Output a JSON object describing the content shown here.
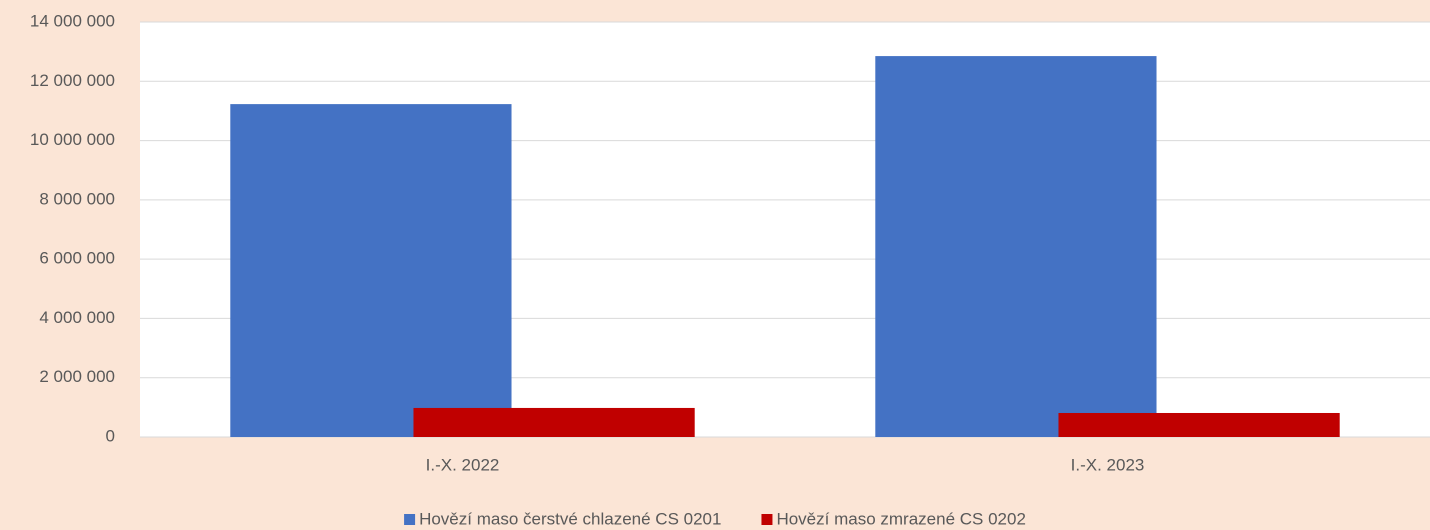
{
  "chart_data": {
    "type": "bar",
    "categories": [
      "I.-X. 2022",
      "I.-X. 2023"
    ],
    "series": [
      {
        "name": "Hovězí maso čerstvé chlazené CS 0201",
        "color": "#4472c4",
        "values": [
          11230000,
          12850000
        ]
      },
      {
        "name": "Hovězí maso zmrazené CS 0202",
        "color": "#c00000",
        "values": [
          980000,
          810000
        ]
      }
    ],
    "ylim": [
      0,
      14000000
    ],
    "yticks": [
      0,
      {
        "value": 2000000,
        "label": "2 000 000"
      },
      {
        "value": 4000000,
        "label": "4 000 000"
      },
      {
        "value": 6000000,
        "label": "6 000 000"
      },
      {
        "value": 8000000,
        "label": "8 000 000"
      },
      {
        "value": 10000000,
        "label": "10 000 000"
      },
      {
        "value": 12000000,
        "label": "12 000 000"
      },
      {
        "value": 14000000,
        "label": "14 000 000"
      }
    ],
    "grid": true,
    "legend": "bottom"
  }
}
